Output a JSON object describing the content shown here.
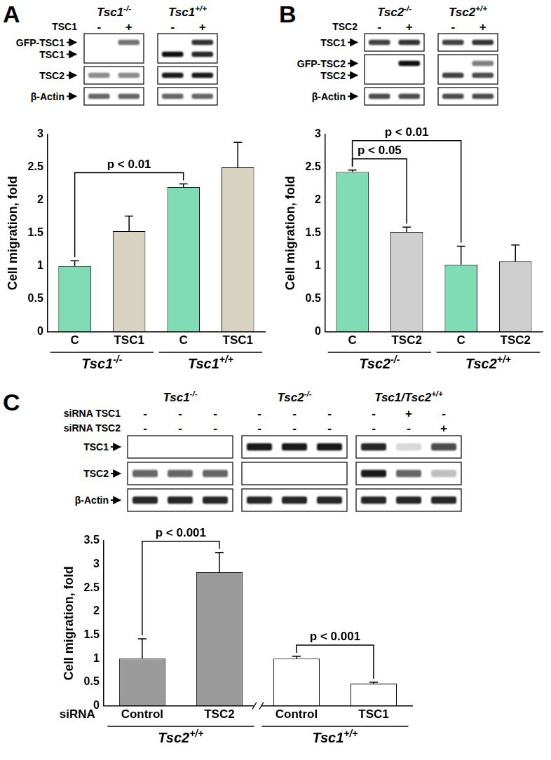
{
  "panel_labels": [
    "A",
    "B",
    "C"
  ],
  "blots": [
    {
      "groups": [
        "Tsc1-/-",
        "Tsc1+/+"
      ],
      "treatments": [
        {
          "label": "TSC1",
          "marks": [
            "-",
            "+",
            "-",
            "+"
          ]
        }
      ],
      "boxes": [
        [
          {
            "label": "GFP-TSC1",
            "bands": [
              0,
              0.55,
              0,
              0.8
            ]
          },
          {
            "label": "TSC1",
            "bands": [
              0,
              0,
              0.95,
              0.85
            ]
          }
        ],
        [
          {
            "label": "TSC2",
            "bands": [
              0.45,
              0.45,
              0.9,
              0.9
            ]
          }
        ],
        [
          {
            "label": "β-Actin",
            "bands": [
              0.6,
              0.6,
              0.6,
              0.6
            ]
          }
        ]
      ]
    },
    {
      "groups": [
        "Tsc2-/-",
        "Tsc2+/+"
      ],
      "treatments": [
        {
          "label": "TSC2",
          "marks": [
            "-",
            "+",
            "-",
            "+"
          ]
        }
      ],
      "boxes": [
        [
          {
            "label": "TSC1",
            "bands": [
              0.75,
              0.8,
              0.75,
              0.8
            ]
          }
        ],
        [
          {
            "label": "GFP-TSC2",
            "bands": [
              0,
              0.95,
              0,
              0.5
            ]
          },
          {
            "label": "TSC2",
            "bands": [
              0,
              0,
              0.75,
              0.7
            ]
          }
        ],
        [
          {
            "label": "β-Actin",
            "bands": [
              0.7,
              0.7,
              0.7,
              0.7
            ]
          }
        ]
      ]
    },
    {
      "groups": [
        "Tsc1-/-",
        "Tsc2-/-",
        "Tsc1/Tsc2+/+"
      ],
      "treatments": [
        {
          "label": "siRNA TSC1",
          "marks": [
            "-",
            "-",
            "-",
            "-",
            "-",
            "-",
            "-",
            "+",
            "-"
          ]
        },
        {
          "label": "siRNA TSC2",
          "marks": [
            "-",
            "-",
            "-",
            "-",
            "-",
            "-",
            "-",
            "-",
            "+"
          ]
        }
      ],
      "boxes": [
        [
          {
            "label": "TSC1",
            "bands": [
              0,
              0,
              0,
              0.9,
              0.9,
              0.9,
              0.85,
              0.15,
              0.7
            ]
          }
        ],
        [
          {
            "label": "TSC2",
            "bands": [
              0.6,
              0.6,
              0.6,
              0,
              0,
              0,
              0.9,
              0.6,
              0.25
            ]
          }
        ],
        [
          {
            "label": "β-Actin",
            "bands": [
              0.85,
              0.85,
              0.85,
              0.85,
              0.85,
              0.85,
              0.85,
              0.85,
              0.85
            ]
          }
        ]
      ]
    }
  ],
  "chart_data": [
    {
      "type": "bar",
      "categories": [
        "C",
        "TSC1",
        "C",
        "TSC1"
      ],
      "group_labels": [
        "Tsc1-/-",
        "Tsc1+/+"
      ],
      "values": [
        1.0,
        1.53,
        2.2,
        2.5
      ],
      "errors": [
        0.08,
        0.23,
        0.05,
        0.38
      ],
      "colors": [
        "#7fdcb4",
        "#d9d4c2",
        "#7fdcb4",
        "#d9d4c2"
      ],
      "ylabel": "Cell migration, fold",
      "ylim": [
        0,
        3
      ],
      "yticks": [
        0,
        0.5,
        1,
        1.5,
        2,
        2.5,
        3
      ],
      "grid": false,
      "annotations": [
        {
          "text": "p < 0.01",
          "bars": [
            0,
            2
          ]
        }
      ]
    },
    {
      "type": "bar",
      "categories": [
        "C",
        "TSC2",
        "C",
        "TSC2"
      ],
      "group_labels": [
        "Tsc2-/-",
        "Tsc2+/+"
      ],
      "values": [
        2.43,
        1.52,
        1.02,
        1.07
      ],
      "errors": [
        0.03,
        0.07,
        0.28,
        0.25
      ],
      "colors": [
        "#7fdcb4",
        "#cfcfcf",
        "#7fdcb4",
        "#cfcfcf"
      ],
      "ylabel": "Cell migration, fold",
      "ylim": [
        0,
        3
      ],
      "yticks": [
        0,
        0.5,
        1,
        1.5,
        2,
        2.5,
        3
      ],
      "grid": false,
      "annotations": [
        {
          "text": "p < 0.05",
          "bars": [
            0,
            1
          ]
        },
        {
          "text": "p < 0.01",
          "bars": [
            0,
            2
          ]
        }
      ]
    },
    {
      "type": "bar",
      "categories": [
        "Control",
        "TSC2",
        "Control",
        "TSC1"
      ],
      "group_labels": [
        "Tsc2+/+",
        "Tsc1+/+"
      ],
      "xlabel": "siRNA",
      "values": [
        1.0,
        2.83,
        1.0,
        0.47
      ],
      "errors": [
        0.42,
        0.42,
        0.05,
        0.03
      ],
      "colors": [
        "#9b9b9b",
        "#9b9b9b",
        "#ffffff",
        "#ffffff"
      ],
      "ylabel": "Cell migration, fold",
      "ylim": [
        0,
        3.5
      ],
      "yticks": [
        0,
        0.5,
        1,
        1.5,
        2,
        2.5,
        3,
        3.5
      ],
      "grid": false,
      "annotations": [
        {
          "text": "p < 0.001",
          "bars": [
            0,
            1
          ]
        },
        {
          "text": "p < 0.001",
          "bars": [
            2,
            3
          ]
        }
      ]
    }
  ]
}
